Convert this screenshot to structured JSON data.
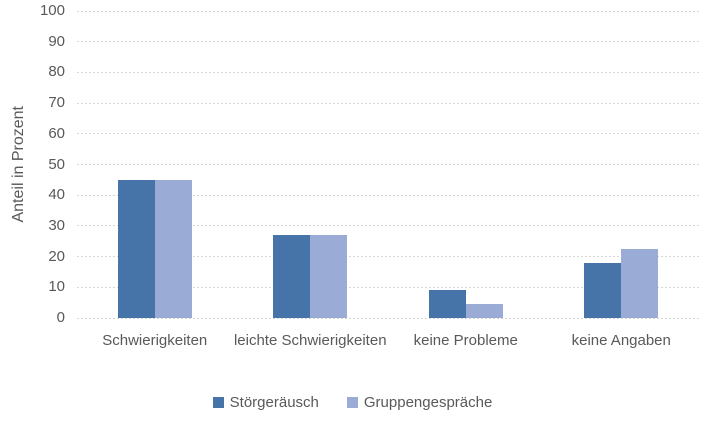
{
  "colors": {
    "series1": "#4674A8",
    "series2": "#9AACD5",
    "gridline": "#D6D6D6",
    "text": "#595959",
    "background": "#FFFFFF"
  },
  "chart_data": {
    "type": "bar",
    "title": "",
    "xlabel": "",
    "ylabel": "Anteil in Prozent",
    "ylim": [
      0,
      100
    ],
    "ytick_step": 10,
    "ytick_labels": [
      "0",
      "10",
      "20",
      "30",
      "40",
      "50",
      "60",
      "70",
      "80",
      "90",
      "100"
    ],
    "grid": true,
    "gridline_style": "dotted",
    "legend_position": "bottom",
    "categories": [
      "Schwierigkeiten",
      "leichte Schwierigkeiten",
      "keine Probleme",
      "keine Angaben"
    ],
    "series": [
      {
        "name": "Störgeräusch",
        "color": "#4674A8",
        "values": [
          45,
          27,
          9,
          18
        ]
      },
      {
        "name": "Gruppengespräche",
        "color": "#9AACD5",
        "values": [
          45,
          27,
          4.5,
          22.5
        ]
      }
    ]
  }
}
